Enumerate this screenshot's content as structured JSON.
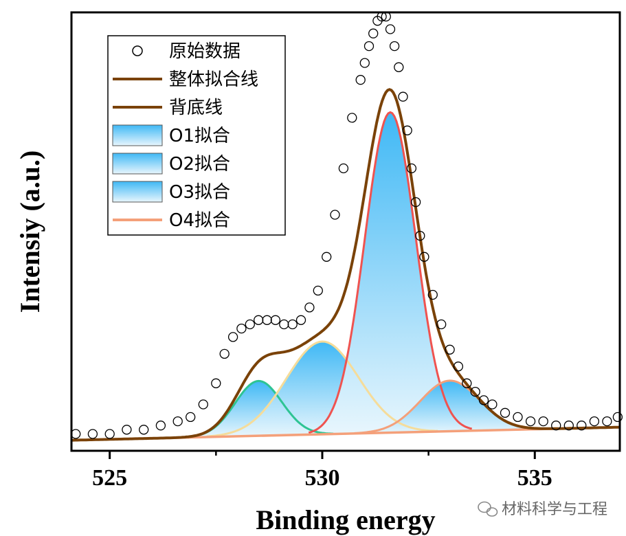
{
  "chart_data": {
    "type": "line",
    "title": "",
    "xlabel": "Binding energy",
    "ylabel": "Intensiy (a.u.)",
    "xlim": [
      524.1,
      537.0
    ],
    "ylim": [
      -0.04,
      1.0
    ],
    "x_ticks": [
      525,
      530,
      535
    ],
    "x_tick_labels": [
      "525",
      "530",
      "535"
    ],
    "x_minor_ticks": [
      527.5,
      532.5
    ],
    "y_ticks_shown": false,
    "legend_position": "top-left",
    "legend": [
      {
        "label": "原始数据",
        "kind": "marker",
        "color": "#000000"
      },
      {
        "label": "整体拟合线",
        "kind": "line",
        "color": "#7a4208"
      },
      {
        "label": "背底线",
        "kind": "line",
        "color": "#7a4208"
      },
      {
        "label": "O1拟合",
        "kind": "area",
        "color": "#4fc3f7"
      },
      {
        "label": "O2拟合",
        "kind": "area",
        "color": "#4fc3f7"
      },
      {
        "label": "O3拟合",
        "kind": "area",
        "color": "#4fc3f7"
      },
      {
        "label": "O4拟合",
        "kind": "line",
        "color": "#f4a07a"
      }
    ],
    "background": {
      "x": [
        524.1,
        537.0
      ],
      "y": [
        -0.015,
        0.016
      ]
    },
    "peaks": [
      {
        "name": "O1拟合",
        "center": 528.5,
        "height": 0.13,
        "sigma": 0.55,
        "edge_color": "#2ec493",
        "fill": "#4fc3f7"
      },
      {
        "name": "O2拟合",
        "center": 530.0,
        "height": 0.22,
        "sigma": 0.85,
        "edge_color": "#f5dc9a",
        "fill": "#4fc3f7"
      },
      {
        "name": "O3拟合",
        "center": 531.6,
        "height": 0.76,
        "sigma": 0.6,
        "edge_color": "#ef5350",
        "fill": "#4fc3f7"
      },
      {
        "name": "O4拟合",
        "center": 533.0,
        "height": 0.12,
        "sigma": 0.7,
        "edge_color": "#f4a07a",
        "fill": "#4fc3f7"
      }
    ],
    "raw_data": {
      "x": [
        524.2,
        524.6,
        525.0,
        525.4,
        525.8,
        526.2,
        526.6,
        526.9,
        527.2,
        527.5,
        527.7,
        527.9,
        528.1,
        528.3,
        528.5,
        528.7,
        528.9,
        529.1,
        529.3,
        529.5,
        529.7,
        529.9,
        530.1,
        530.3,
        530.5,
        530.7,
        530.9,
        531.0,
        531.1,
        531.2,
        531.3,
        531.4,
        531.5,
        531.6,
        531.7,
        531.8,
        531.9,
        532.0,
        532.1,
        532.2,
        532.3,
        532.4,
        532.6,
        532.8,
        533.0,
        533.2,
        533.4,
        533.6,
        533.8,
        534.0,
        534.3,
        534.6,
        534.9,
        535.2,
        535.5,
        535.8,
        536.1,
        536.4,
        536.7,
        536.95
      ],
      "y": [
        0.0,
        0.0,
        0.0,
        0.01,
        0.01,
        0.02,
        0.03,
        0.04,
        0.07,
        0.12,
        0.19,
        0.23,
        0.25,
        0.26,
        0.27,
        0.27,
        0.27,
        0.26,
        0.26,
        0.27,
        0.3,
        0.34,
        0.42,
        0.52,
        0.63,
        0.75,
        0.84,
        0.88,
        0.92,
        0.95,
        0.98,
        0.99,
        0.99,
        0.96,
        0.92,
        0.87,
        0.8,
        0.72,
        0.63,
        0.55,
        0.47,
        0.42,
        0.33,
        0.26,
        0.2,
        0.16,
        0.12,
        0.1,
        0.08,
        0.07,
        0.05,
        0.04,
        0.03,
        0.03,
        0.02,
        0.02,
        0.02,
        0.03,
        0.03,
        0.04
      ]
    }
  },
  "watermark": {
    "text": "材料科学与工程",
    "icon": "wechat-icon"
  }
}
